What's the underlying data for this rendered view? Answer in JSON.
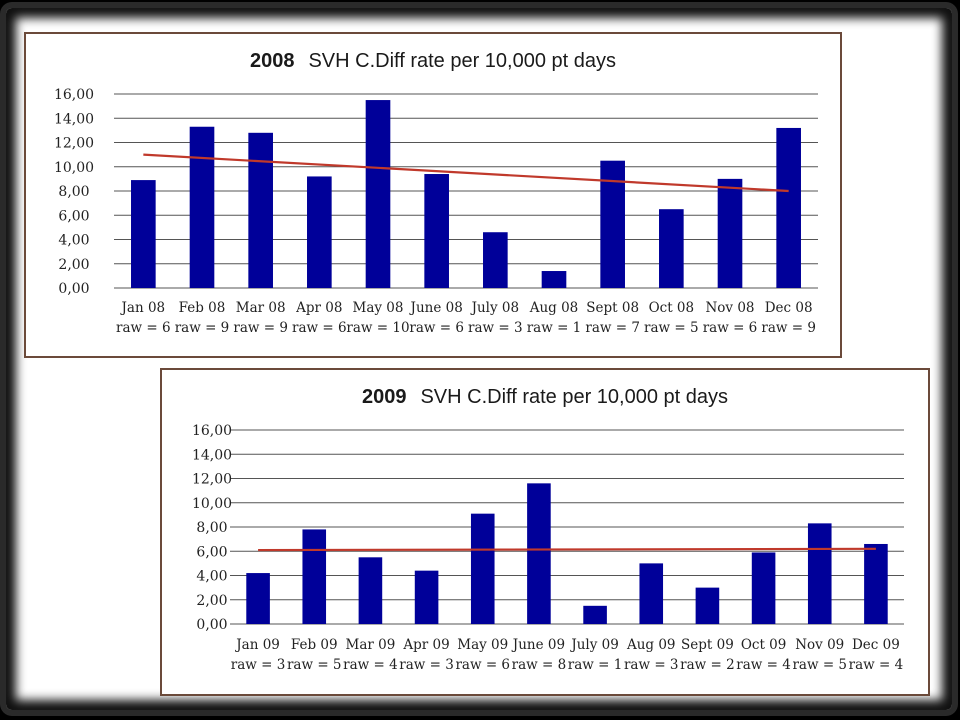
{
  "chart_data": [
    {
      "type": "bar",
      "title_year": "2008",
      "title_text": "SVH C.Diff rate per 10,000 pt days",
      "categories": [
        "Jan 08",
        "Feb 08",
        "Mar 08",
        "Apr 08",
        "May 08",
        "June 08",
        "July 08",
        "Aug 08",
        "Sept 08",
        "Oct 08",
        "Nov 08",
        "Dec 08"
      ],
      "category_sublabels": [
        "raw = 6",
        "raw = 9",
        "raw = 9",
        "raw = 6",
        "raw = 10",
        "raw = 6",
        "raw = 3",
        "raw = 1",
        "raw = 7",
        "raw = 5",
        "raw = 6",
        "raw = 9"
      ],
      "values": [
        8.9,
        13.3,
        12.8,
        9.2,
        15.5,
        9.4,
        4.6,
        1.4,
        10.5,
        6.5,
        9.0,
        13.2
      ],
      "trendline": [
        11.0,
        8.0
      ],
      "ylim": [
        0,
        16
      ],
      "yticks": [
        "0,00",
        "2,00",
        "4,00",
        "6,00",
        "8,00",
        "10,00",
        "12,00",
        "14,00",
        "16,00"
      ],
      "grid": true,
      "bar_color": "#000099",
      "trend_color": "#c0392b"
    },
    {
      "type": "bar",
      "title_year": "2009",
      "title_text": "SVH C.Diff rate per 10,000 pt days",
      "categories": [
        "Jan 09",
        "Feb 09",
        "Mar 09",
        "Apr 09",
        "May 09",
        "June 09",
        "July 09",
        "Aug 09",
        "Sept 09",
        "Oct 09",
        "Nov 09",
        "Dec 09"
      ],
      "category_sublabels": [
        "raw = 3",
        "raw = 5",
        "raw = 4",
        "raw = 3",
        "raw = 6",
        "raw = 8",
        "raw = 1",
        "raw = 3",
        "raw = 2",
        "raw = 4",
        "raw = 5",
        "raw = 4"
      ],
      "values": [
        4.2,
        7.8,
        5.5,
        4.4,
        9.1,
        11.6,
        1.5,
        5.0,
        3.0,
        5.9,
        8.3,
        6.6
      ],
      "trendline": [
        6.1,
        6.2
      ],
      "ylim": [
        0,
        16
      ],
      "yticks": [
        "0,00",
        "2,00",
        "4,00",
        "6,00",
        "8,00",
        "10,00",
        "12,00",
        "14,00",
        "16,00"
      ],
      "grid": true,
      "bar_color": "#000099",
      "trend_color": "#c0392b"
    }
  ]
}
